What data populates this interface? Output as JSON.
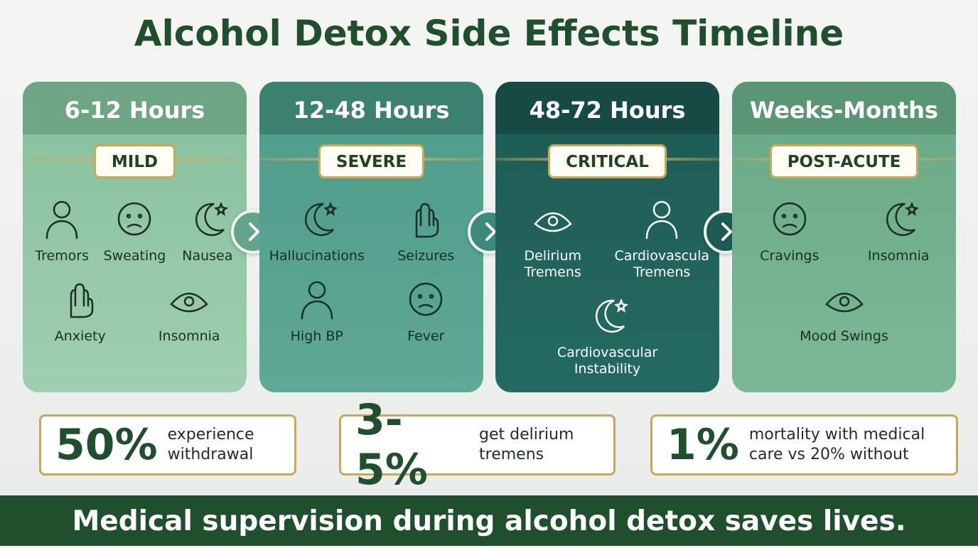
{
  "title": "Alcohol Detox Side Effects Timeline",
  "stages": [
    {
      "time": "6-12 Hours",
      "level": "MILD",
      "rows": [
        [
          "Tremors",
          "Sweating",
          "Nausea"
        ],
        [
          "Anxiety",
          "Insomnia"
        ]
      ]
    },
    {
      "time": "12-48 Hours",
      "level": "SEVERE",
      "rows": [
        [
          "Hallucinations",
          "Seizures"
        ],
        [
          "High BP",
          "Fever"
        ]
      ]
    },
    {
      "time": "48-72 Hours",
      "level": "CRITICAL",
      "rows": [
        [
          "Delirium Tremens",
          "Cardiovascula Tremens"
        ],
        [
          "Cardiovascular Instability"
        ]
      ]
    },
    {
      "time": "Weeks-Months",
      "level": "POST-ACUTE",
      "rows": [
        [
          "Cravings",
          "Insomnia"
        ],
        [
          "Mood Swings"
        ]
      ]
    }
  ],
  "stats": [
    {
      "number": "50%",
      "text": "experience withdrawal"
    },
    {
      "number": "3-5%",
      "text": "get delirium tremens"
    },
    {
      "number": "1%",
      "text": "mortality with medical care vs 20% without"
    }
  ],
  "footer": "Medical supervision during alcohol detox saves lives."
}
